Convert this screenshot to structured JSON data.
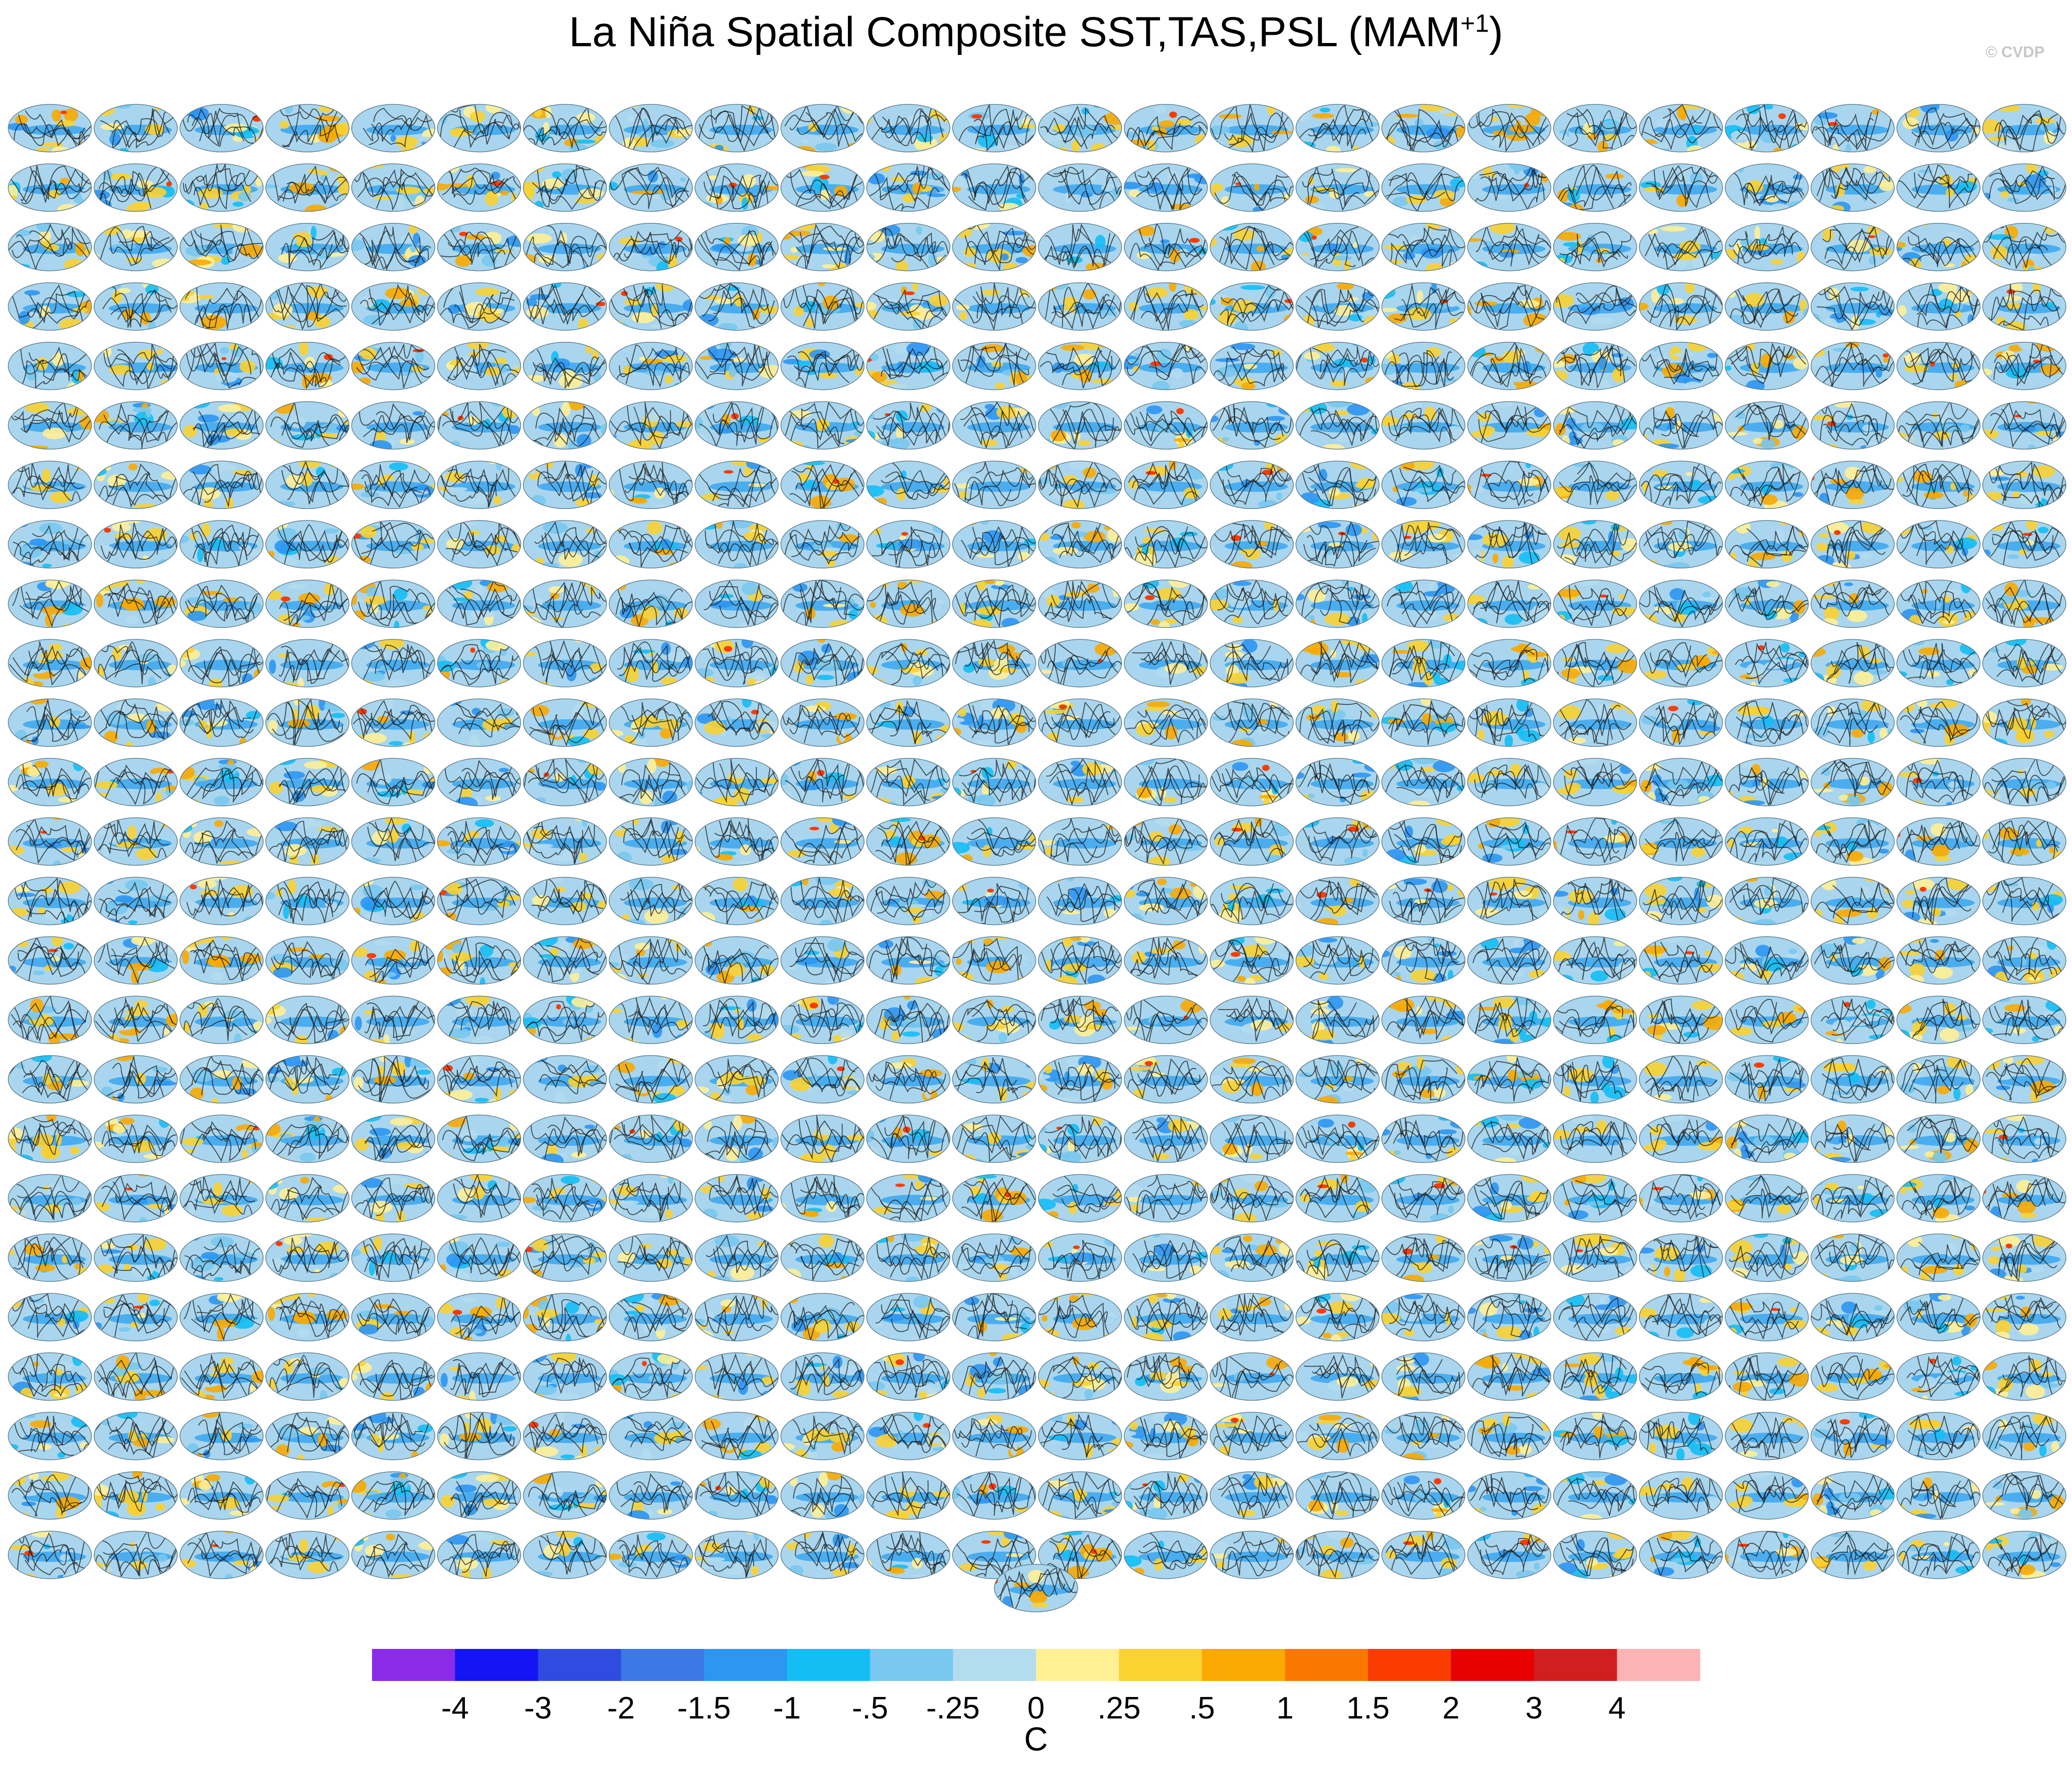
{
  "header": {
    "title_main": "La Niña Spatial Composite SST,TAS,PSL (MAM",
    "title_sup": "+1",
    "title_end": ")",
    "credit": "© CVDP"
  },
  "chart_data": {
    "type": "heatmap",
    "title": "La Niña Spatial Composite SST,TAS,PSL (MAM+1)",
    "panel_grid": {
      "rows": 25,
      "cols": 24,
      "extra_panels": 1,
      "total_panels": 601
    },
    "colorbar": {
      "unit": "C",
      "tick_labels": [
        "-4",
        "-3",
        "-2",
        "-1.5",
        "-1",
        "-.5",
        "-.25",
        "0",
        ".25",
        ".5",
        "1",
        "1.5",
        "2",
        "3",
        "4"
      ],
      "colors": [
        "#8a2be8",
        "#1414f5",
        "#2f4be0",
        "#3c78e6",
        "#2c96f2",
        "#14bef5",
        "#78c8f0",
        "#b4dcf0",
        "#fff096",
        "#fad232",
        "#faaa00",
        "#fa7800",
        "#fa3c00",
        "#e60000",
        "#d21e1e",
        "#fab4b4"
      ]
    }
  }
}
